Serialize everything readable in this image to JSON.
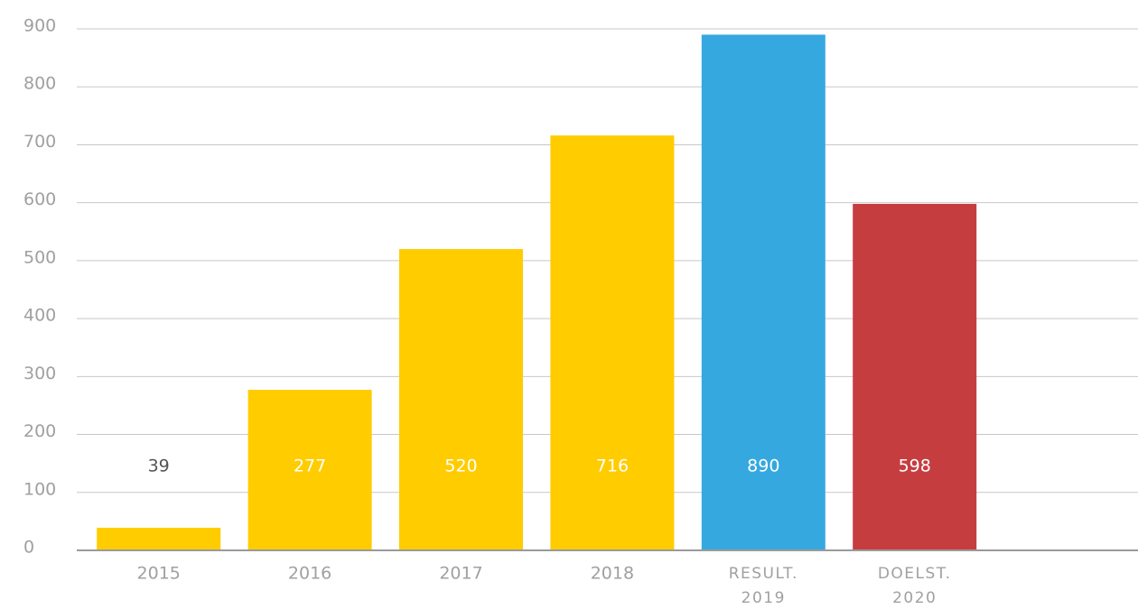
{
  "chart_data": {
    "type": "bar",
    "categories": [
      "2015",
      "2016",
      "2017",
      "2018",
      "RESULT. 2019",
      "DOELST. 2020"
    ],
    "values": [
      39,
      277,
      520,
      716,
      890,
      598
    ],
    "colors": [
      "#ffcc00",
      "#ffcc00",
      "#ffcc00",
      "#ffcc00",
      "#35a8e0",
      "#c63d40"
    ],
    "ylim": [
      0,
      900
    ],
    "yticks": [
      0,
      100,
      200,
      300,
      400,
      500,
      600,
      700,
      800,
      900
    ],
    "grid": true
  }
}
